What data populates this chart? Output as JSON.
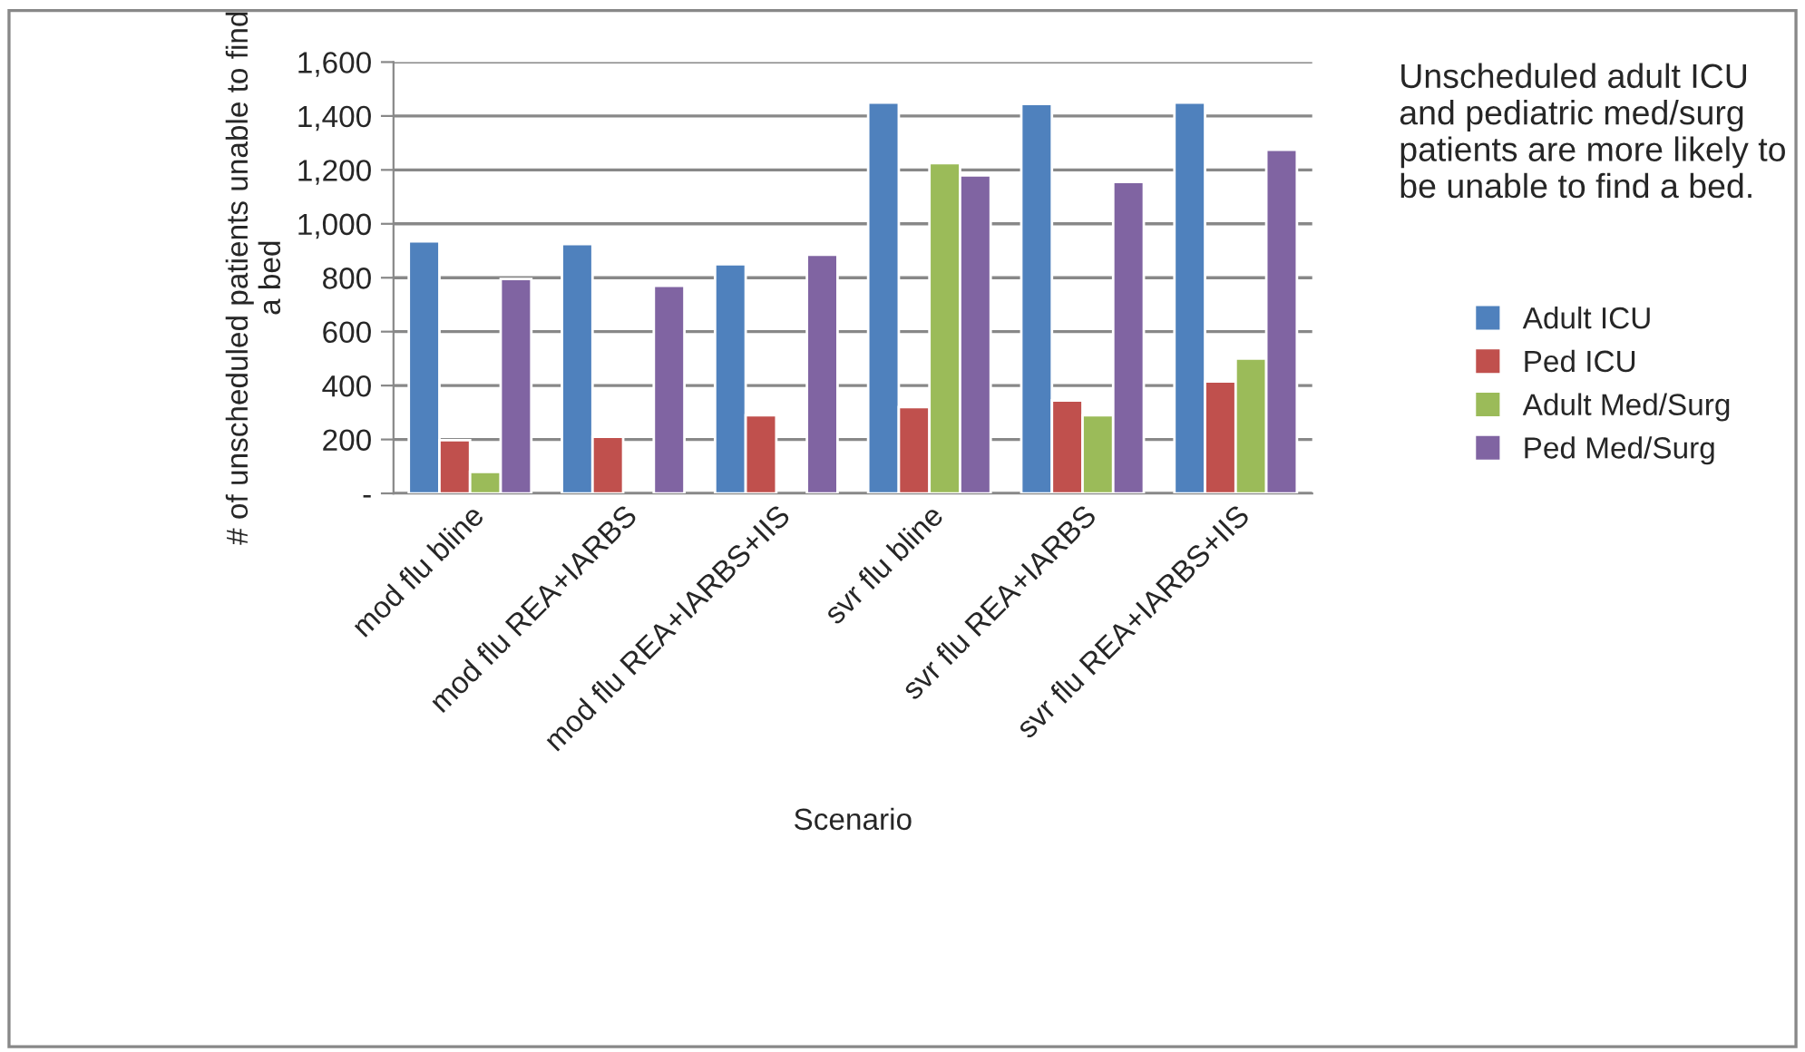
{
  "chart_data": {
    "type": "bar",
    "categories": [
      "mod flu bline",
      "mod flu REA+IARBS",
      "mod flu REA+IARBS+IIS",
      "svr flu bline",
      "svr flu REA+IARBS",
      "svr flu REA+IARBS+IIS"
    ],
    "series": [
      {
        "name": "Adult ICU",
        "color": "#4f81bd",
        "values": [
          935,
          925,
          850,
          1450,
          1445,
          1450
        ]
      },
      {
        "name": "Ped ICU",
        "color": "#c0504d",
        "values": [
          197,
          210,
          290,
          320,
          345,
          415
        ]
      },
      {
        "name": "Adult Med/Surg",
        "color": "#9bbb59",
        "values": [
          80,
          null,
          null,
          1225,
          290,
          500
        ]
      },
      {
        "name": "Ped Med/Surg",
        "color": "#8064a2",
        "values": [
          795,
          770,
          885,
          1180,
          1155,
          1275
        ]
      }
    ],
    "xlabel": "Scenario",
    "ylabel": "# of unscheduled patients unable to find a bed",
    "ylim": [
      0,
      1600
    ],
    "yticks": [
      {
        "value": 0,
        "label": "-"
      },
      {
        "value": 200,
        "label": "200"
      },
      {
        "value": 400,
        "label": "400"
      },
      {
        "value": 600,
        "label": "600"
      },
      {
        "value": 800,
        "label": "800"
      },
      {
        "value": 1000,
        "label": "1,000"
      },
      {
        "value": 1200,
        "label": "1,200"
      },
      {
        "value": 1400,
        "label": "1,400"
      },
      {
        "value": 1600,
        "label": "1,600"
      }
    ],
    "grid": "y",
    "legend": "right",
    "annotations": [
      "Unscheduled adult ICU and pediatric med/surg patients are more likely to be unable to find a bed."
    ]
  }
}
